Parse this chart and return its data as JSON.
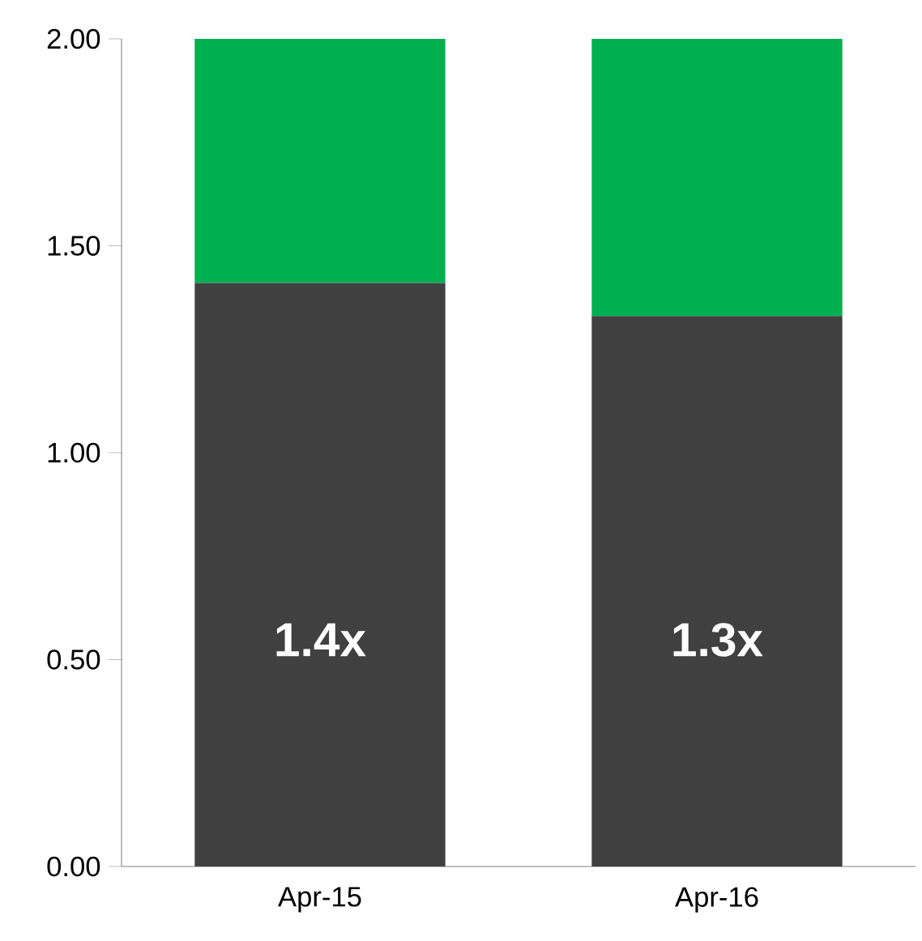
{
  "chart_data": {
    "type": "bar",
    "stacked": true,
    "categories": [
      "Apr-15",
      "Apr-16"
    ],
    "series": [
      {
        "color": "#404040",
        "values": [
          1.41,
          1.33
        ],
        "value_labels": [
          "1.4x",
          "1.3x"
        ]
      },
      {
        "color": "#00b050",
        "values": [
          0.59,
          0.67
        ]
      }
    ],
    "ylim": [
      0,
      2
    ],
    "yticks": [
      {
        "value": 0,
        "label": "0.00"
      },
      {
        "value": 0.5,
        "label": "0.50"
      },
      {
        "value": 1,
        "label": "1.00"
      },
      {
        "value": 1.5,
        "label": "1.50"
      },
      {
        "value": 2,
        "label": "2.00"
      }
    ],
    "grid": false
  }
}
